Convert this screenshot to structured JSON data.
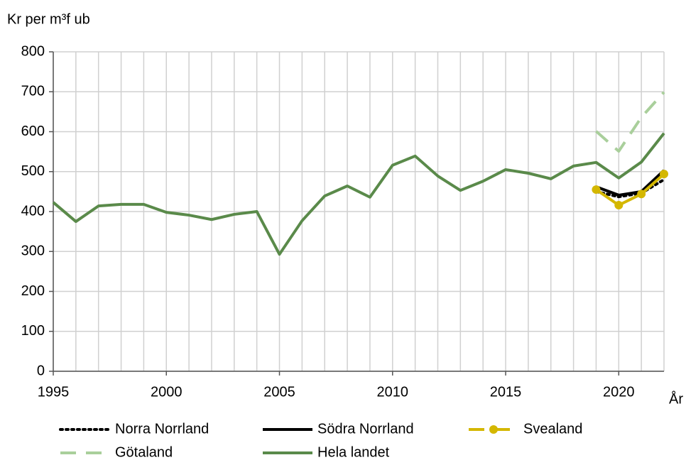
{
  "chart_data": {
    "type": "line",
    "y_label": "Kr per m³f ub",
    "x_label": "År",
    "x": [
      1995,
      1996,
      1997,
      1998,
      1999,
      2000,
      2001,
      2002,
      2003,
      2004,
      2005,
      2006,
      2007,
      2008,
      2009,
      2010,
      2011,
      2012,
      2013,
      2014,
      2015,
      2016,
      2017,
      2018,
      2019,
      2020,
      2021,
      2022
    ],
    "xlim": [
      1995,
      2022
    ],
    "xticks": [
      1995,
      2000,
      2005,
      2010,
      2015,
      2020
    ],
    "xgrid": [
      1995,
      1996,
      1997,
      1998,
      1999,
      2000,
      2001,
      2002,
      2003,
      2004,
      2005,
      2006,
      2007,
      2008,
      2009,
      2010,
      2011,
      2012,
      2013,
      2014,
      2015,
      2016,
      2017,
      2018,
      2019,
      2020,
      2021,
      2022
    ],
    "ylim": [
      0,
      800
    ],
    "yticks": [
      0,
      100,
      200,
      300,
      400,
      500,
      600,
      700,
      800
    ],
    "grid": true,
    "legend": "bottom",
    "series": [
      {
        "name": "Hela landet",
        "color": "#5a8a4a",
        "dash": "solid",
        "width": 4,
        "values": [
          423,
          375,
          414,
          418,
          418,
          398,
          391,
          380,
          393,
          400,
          293,
          377,
          439,
          464,
          436,
          516,
          539,
          489,
          453,
          476,
          505,
          496,
          482,
          514,
          523,
          484,
          524,
          596
        ]
      },
      {
        "name": "Götaland",
        "color": "#a9cf9b",
        "dash": "dashed",
        "width": 4,
        "values": [
          null,
          null,
          null,
          null,
          null,
          null,
          null,
          null,
          null,
          null,
          null,
          null,
          null,
          null,
          null,
          null,
          null,
          null,
          null,
          null,
          null,
          null,
          null,
          null,
          601,
          551,
          636,
          699
        ]
      },
      {
        "name": "Södra Norrland",
        "color": "#000000",
        "dash": "solid",
        "width": 4,
        "values": [
          null,
          null,
          null,
          null,
          null,
          null,
          null,
          null,
          null,
          null,
          null,
          null,
          null,
          null,
          null,
          null,
          null,
          null,
          null,
          null,
          null,
          null,
          null,
          null,
          462,
          441,
          450,
          503
        ]
      },
      {
        "name": "Norra Norrland",
        "color": "#000000",
        "dash": "dotted",
        "width": 4,
        "values": [
          null,
          null,
          null,
          null,
          null,
          null,
          null,
          null,
          null,
          null,
          null,
          null,
          null,
          null,
          null,
          null,
          null,
          null,
          null,
          null,
          null,
          null,
          null,
          null,
          450,
          437,
          446,
          480
        ]
      },
      {
        "name": "Svealand",
        "color": "#d4b700",
        "dash": "solid",
        "width": 4,
        "marker": true,
        "values": [
          null,
          null,
          null,
          null,
          null,
          null,
          null,
          null,
          null,
          null,
          null,
          null,
          null,
          null,
          null,
          null,
          null,
          null,
          null,
          null,
          null,
          null,
          null,
          null,
          455,
          416,
          444,
          494
        ]
      }
    ]
  }
}
